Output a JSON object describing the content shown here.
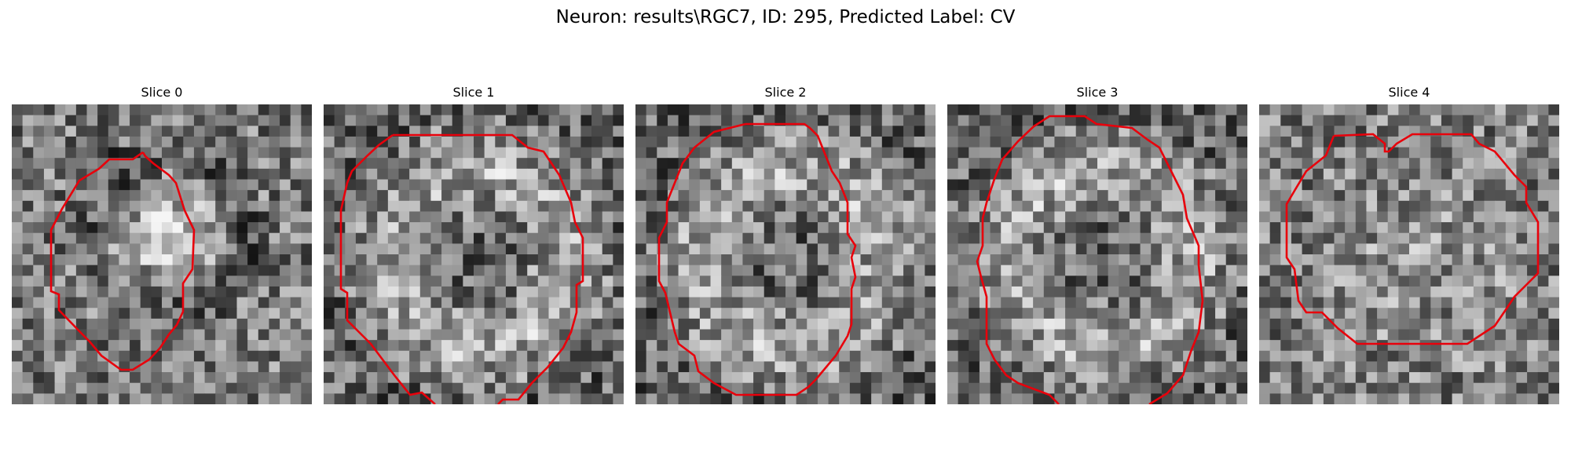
{
  "figure": {
    "title": "Neuron: results\\RGC7, ID: 295, Predicted Label: CV"
  },
  "panels": [
    {
      "title": "Slice 0",
      "seed": 11,
      "inner": "bright",
      "contour_color": "#e8000b"
    },
    {
      "title": "Slice 1",
      "seed": 23,
      "inner": "ring",
      "contour_color": "#e8000b"
    },
    {
      "title": "Slice 2",
      "seed": 37,
      "inner": "ring",
      "contour_color": "#e8000b"
    },
    {
      "title": "Slice 3",
      "seed": 53,
      "inner": "ring",
      "contour_color": "#e8000b"
    },
    {
      "title": "Slice 4",
      "seed": 71,
      "inner": "faint",
      "contour_color": "#e8000b"
    }
  ],
  "colors": {
    "background": "#ffffff",
    "contour": "#e8000b"
  }
}
